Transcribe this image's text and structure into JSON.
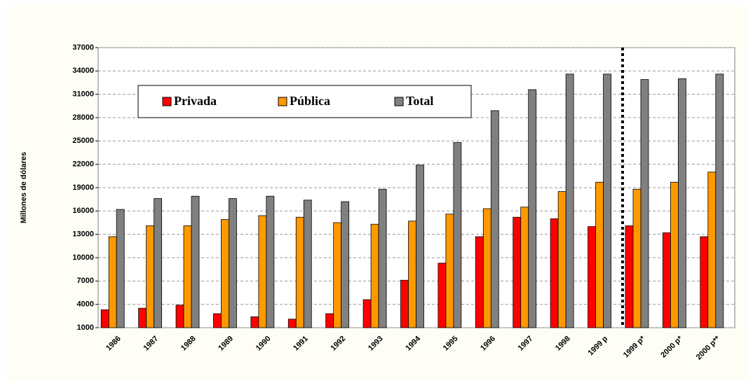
{
  "chart_data": {
    "type": "bar",
    "y_axis_label": "Millones de dólares",
    "categories": [
      "1986",
      "1987",
      "1988",
      "1989",
      "1990",
      "1991",
      "1992",
      "1993",
      "1994",
      "1995",
      "1996",
      "1997",
      "1998",
      "1999 p",
      "1999 p*",
      "2000 p*",
      "2000 p**"
    ],
    "series": [
      {
        "name": "Privada",
        "color": "#ff0000",
        "values": [
          3300,
          3500,
          3900,
          2800,
          2400,
          2100,
          2800,
          4600,
          7100,
          9300,
          12700,
          15200,
          15000,
          14000,
          14100,
          13200,
          12700
        ]
      },
      {
        "name": "Pública",
        "color": "#ff9900",
        "values": [
          12700,
          14100,
          14100,
          14900,
          15400,
          15200,
          14500,
          14300,
          14700,
          15600,
          16300,
          16500,
          18500,
          19700,
          18800,
          19700,
          21000
        ]
      },
      {
        "name": "Total",
        "color": "#808080",
        "values": [
          16200,
          17600,
          17900,
          17600,
          17900,
          17400,
          17200,
          18800,
          21900,
          24800,
          28900,
          31600,
          33600,
          33600,
          32900,
          33000,
          33600
        ]
      }
    ],
    "ylim": [
      1000,
      37000
    ],
    "yticks": [
      1000,
      4000,
      7000,
      10000,
      13000,
      16000,
      19000,
      22000,
      25000,
      28000,
      31000,
      34000,
      37000
    ],
    "grid": true
  }
}
